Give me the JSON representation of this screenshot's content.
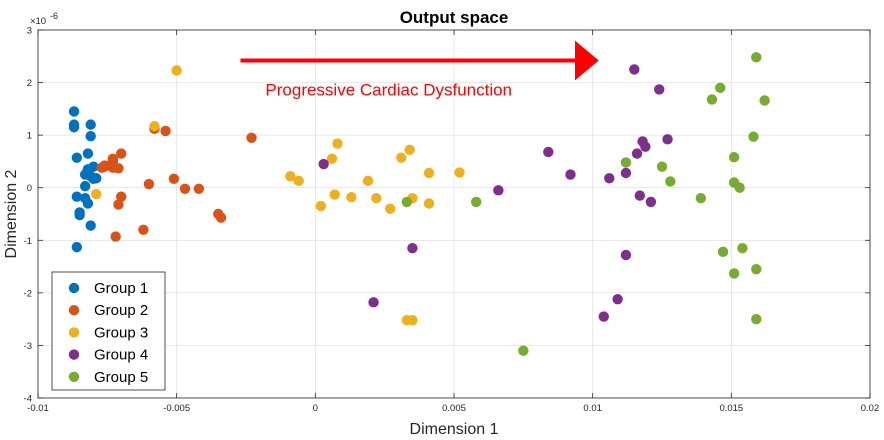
{
  "chart_data": {
    "type": "scatter",
    "title": "Output space",
    "xlabel": "Dimension 1",
    "ylabel": "Dimension 2",
    "xlim": [
      -0.01,
      0.02
    ],
    "ylim": [
      -4,
      3
    ],
    "y_exponent": {
      "base": "×10",
      "power": "-6"
    },
    "xticks": [
      -0.01,
      -0.005,
      0,
      0.005,
      0.01,
      0.015,
      0.02
    ],
    "xtick_labels": [
      "-0.01",
      "-0.005",
      "0",
      "0.005",
      "0.01",
      "0.015",
      "0.02"
    ],
    "yticks": [
      -4,
      -3,
      -2,
      -1,
      0,
      1,
      2,
      3
    ],
    "ytick_labels": [
      "-4",
      "-3",
      "-2",
      "-1",
      "0",
      "1",
      "2",
      "3"
    ],
    "grid": true,
    "legend_position": "bottom-left",
    "annotation": {
      "text": "Progressive Cardiac Dysfunction",
      "color": "#ff0000",
      "arrow_from": [
        -0.0027,
        2.42
      ],
      "arrow_to": [
        0.0095,
        2.42
      ],
      "text_at": [
        -0.0018,
        1.75
      ]
    },
    "series": [
      {
        "name": "Group 1",
        "color": "#0072BD",
        "points": [
          [
            -0.0087,
            1.45
          ],
          [
            -0.0087,
            1.2
          ],
          [
            -0.0087,
            1.15
          ],
          [
            -0.0081,
            1.2
          ],
          [
            -0.0081,
            0.98
          ],
          [
            -0.0082,
            0.65
          ],
          [
            -0.0086,
            0.57
          ],
          [
            -0.008,
            0.4
          ],
          [
            -0.0082,
            0.35
          ],
          [
            -0.0083,
            0.25
          ],
          [
            -0.0081,
            0.22
          ],
          [
            -0.008,
            0.17
          ],
          [
            -0.0079,
            0.18
          ],
          [
            -0.0083,
            0.03
          ],
          [
            -0.0086,
            -0.17
          ],
          [
            -0.0083,
            -0.2
          ],
          [
            -0.0082,
            -0.3
          ],
          [
            -0.0085,
            -0.47
          ],
          [
            -0.0085,
            -0.52
          ],
          [
            -0.0081,
            -0.72
          ],
          [
            -0.0086,
            -1.13
          ]
        ]
      },
      {
        "name": "Group 2",
        "color": "#D95319",
        "points": [
          [
            -0.0023,
            0.95
          ],
          [
            -0.0058,
            1.12
          ],
          [
            -0.0054,
            1.08
          ],
          [
            -0.007,
            0.65
          ],
          [
            -0.0073,
            0.55
          ],
          [
            -0.0073,
            0.5
          ],
          [
            -0.0074,
            0.43
          ],
          [
            -0.0076,
            0.4
          ],
          [
            -0.0077,
            0.38
          ],
          [
            -0.0073,
            0.38
          ],
          [
            -0.0071,
            0.37
          ],
          [
            -0.0076,
            0.42
          ],
          [
            -0.006,
            0.07
          ],
          [
            -0.0051,
            0.17
          ],
          [
            -0.0047,
            -0.02
          ],
          [
            -0.0042,
            -0.02
          ],
          [
            -0.007,
            -0.17
          ],
          [
            -0.0071,
            -0.32
          ],
          [
            -0.0035,
            -0.5
          ],
          [
            -0.0034,
            -0.57
          ],
          [
            -0.0062,
            -0.8
          ],
          [
            -0.0072,
            -0.93
          ]
        ]
      },
      {
        "name": "Group 3",
        "color": "#EDB120",
        "points": [
          [
            -0.005,
            2.23
          ],
          [
            -0.0058,
            1.17
          ],
          [
            -0.0079,
            -0.12
          ],
          [
            0.0008,
            0.84
          ],
          [
            0.0006,
            0.55
          ],
          [
            0.0034,
            0.72
          ],
          [
            0.0031,
            0.57
          ],
          [
            -0.0009,
            0.22
          ],
          [
            -0.0006,
            0.13
          ],
          [
            0.0019,
            0.13
          ],
          [
            0.0041,
            0.28
          ],
          [
            0.0052,
            0.29
          ],
          [
            0.0007,
            -0.13
          ],
          [
            0.0013,
            -0.18
          ],
          [
            0.0002,
            -0.35
          ],
          [
            0.0022,
            -0.2
          ],
          [
            0.0027,
            -0.4
          ],
          [
            0.0035,
            -0.2
          ],
          [
            0.0041,
            -0.3
          ],
          [
            0.0033,
            -2.52
          ],
          [
            0.0035,
            -2.52
          ]
        ]
      },
      {
        "name": "Group 4",
        "color": "#7E2F8E",
        "points": [
          [
            0.0115,
            2.25
          ],
          [
            0.0124,
            1.87
          ],
          [
            0.0118,
            0.88
          ],
          [
            0.0119,
            0.78
          ],
          [
            0.0127,
            0.92
          ],
          [
            0.0116,
            0.65
          ],
          [
            0.0084,
            0.68
          ],
          [
            0.0003,
            0.45
          ],
          [
            0.0092,
            0.25
          ],
          [
            0.0106,
            0.18
          ],
          [
            0.0112,
            0.28
          ],
          [
            0.0066,
            -0.05
          ],
          [
            0.0117,
            -0.15
          ],
          [
            0.0121,
            -0.27
          ],
          [
            0.0035,
            -1.15
          ],
          [
            0.0112,
            -1.28
          ],
          [
            0.0021,
            -2.18
          ],
          [
            0.0109,
            -2.12
          ],
          [
            0.0104,
            -2.45
          ]
        ]
      },
      {
        "name": "Group 5",
        "color": "#77AC30",
        "points": [
          [
            0.0159,
            2.48
          ],
          [
            0.0146,
            1.9
          ],
          [
            0.0143,
            1.68
          ],
          [
            0.0162,
            1.66
          ],
          [
            0.0158,
            0.97
          ],
          [
            0.0112,
            0.48
          ],
          [
            0.0151,
            0.58
          ],
          [
            0.0125,
            0.4
          ],
          [
            0.0128,
            0.12
          ],
          [
            0.0151,
            0.1
          ],
          [
            0.0153,
            0.0
          ],
          [
            0.0139,
            -0.2
          ],
          [
            0.0033,
            -0.27
          ],
          [
            0.0058,
            -0.27
          ],
          [
            0.0154,
            -1.15
          ],
          [
            0.0147,
            -1.22
          ],
          [
            0.0159,
            -1.55
          ],
          [
            0.0151,
            -1.63
          ],
          [
            0.0075,
            -3.1
          ],
          [
            0.0159,
            -2.5
          ]
        ]
      }
    ]
  }
}
